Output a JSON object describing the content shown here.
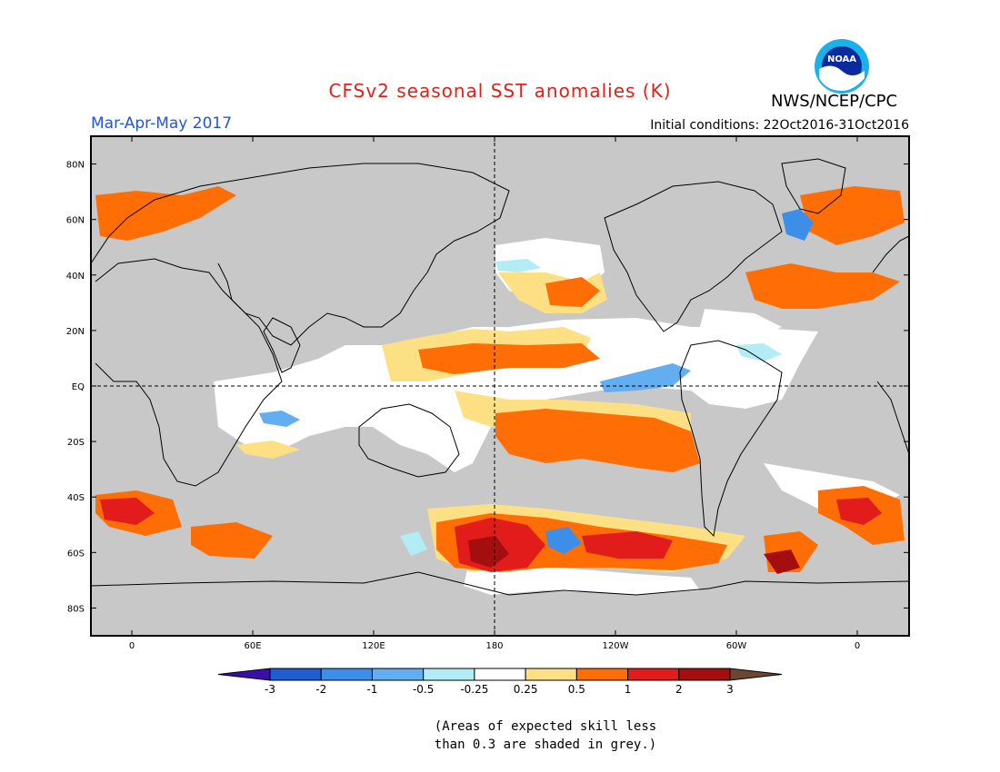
{
  "header": {
    "title": "CFSv2 seasonal SST anomalies (K)",
    "season": "Mar-Apr-May 2017",
    "initial_conditions": "Initial conditions: 22Oct2016-31Oct2016",
    "agency": "NWS/NCEP/CPC",
    "logo_text": "NOAA"
  },
  "map": {
    "lat_labels": [
      "80N",
      "60N",
      "40N",
      "20N",
      "EQ",
      "20S",
      "40S",
      "60S",
      "80S"
    ],
    "lon_labels": [
      "0",
      "60E",
      "120E",
      "180",
      "120W",
      "60W",
      "0"
    ],
    "land_color": "#c8c8c8",
    "mask_color": "#c8c8c8"
  },
  "colorbar": {
    "labels": [
      "-3",
      "-2",
      "-1",
      "-0.5",
      "-0.25",
      "0.25",
      "0.5",
      "1",
      "2",
      "3"
    ],
    "colors": [
      "#3a0ea8",
      "#1d5fd0",
      "#3c8ee8",
      "#63aef0",
      "#b2ecf4",
      "#ffffff",
      "#fde084",
      "#ff6d05",
      "#e21b1b",
      "#a50e0e",
      "#6b4632"
    ]
  },
  "note": {
    "line1": "(Areas of expected skill less",
    "line2": "than 0.3 are shaded in grey.)"
  }
}
